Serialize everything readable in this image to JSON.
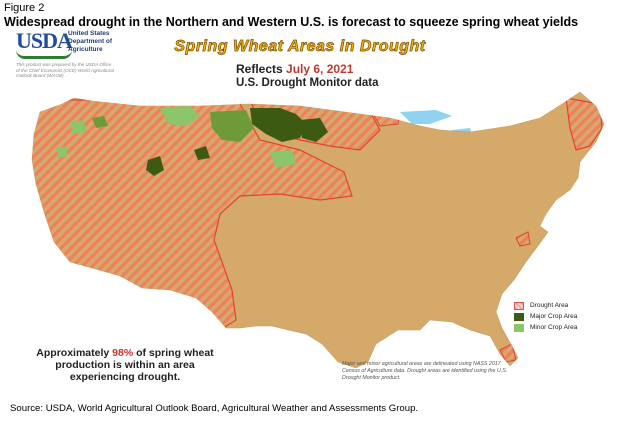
{
  "figure": {
    "label": "Figure 2",
    "title": "Widespread drought in the Northern and Western U.S. is forecast to squeeze spring wheat yields",
    "source": "Source: USDA, World Agricultural Outlook Board, Agricultural Weather and Assessments Group."
  },
  "agency": {
    "logo_text": "USDA",
    "dept_line1": "United States",
    "dept_line2": "Department of",
    "dept_line3": "Agriculture",
    "prepared_note": "This product was prepared by the USDA Office of the Chief Economist (OCE) World Agricultural Outlook Board (WAOB)"
  },
  "map": {
    "title": "Spring Wheat Areas in Drought",
    "reflects_prefix": "Reflects",
    "reflects_date": "July 6, 2021",
    "data_source": "U.S. Drought Monitor data",
    "colors": {
      "land": "#d4a96a",
      "drought_border": "#e8412c",
      "drought_fill": "#f08a6a",
      "water": "#8fd3f0",
      "major_crop": "#3d5a12",
      "minor_crop": "#8cc56b"
    }
  },
  "legend": {
    "items": [
      {
        "label": "Drought Area",
        "icon": "hatched-red-swatch"
      },
      {
        "label": "Major Crop Area",
        "icon": "dark-green-swatch"
      },
      {
        "label": "Minor Crop Area",
        "icon": "light-green-swatch"
      }
    ]
  },
  "stat": {
    "line1_prefix": "Approximately",
    "percent": "98%",
    "line1_suffix": "of spring wheat",
    "line2": "production is within an area",
    "line3": "experiencing drought."
  },
  "note": "Major and minor agricultural areas are delineated using NASS 2017 Census of Agriculture data. Drought areas are identified using the U.S. Drought Monitor product."
}
